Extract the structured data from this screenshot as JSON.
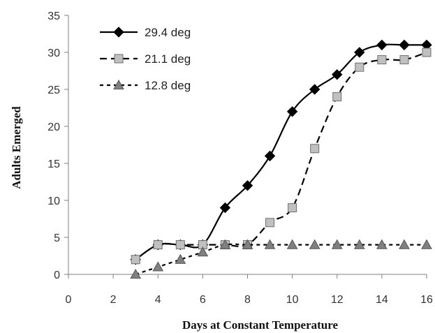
{
  "chart_data": {
    "type": "line",
    "title": "",
    "xlabel": "Days at Constant Temperature",
    "ylabel": "Adults Emerged",
    "xlim": [
      0,
      16
    ],
    "ylim": [
      0,
      35
    ],
    "x_ticks": [
      0,
      2,
      4,
      6,
      8,
      10,
      12,
      14,
      16
    ],
    "y_ticks": [
      0,
      5,
      10,
      15,
      20,
      25,
      30,
      35
    ],
    "grid": false,
    "legend_position": "top-left",
    "series": [
      {
        "name": "29.4 deg",
        "marker": "diamond",
        "line_style": "solid",
        "color": "#000000",
        "marker_fill": "#000000",
        "x": [
          3,
          4,
          5,
          6,
          7,
          8,
          9,
          10,
          11,
          12,
          13,
          14,
          15,
          16
        ],
        "y": [
          2,
          4,
          4,
          4,
          9,
          12,
          16,
          22,
          25,
          27,
          30,
          31,
          31,
          31
        ]
      },
      {
        "name": "21.1 deg",
        "marker": "square",
        "line_style": "dashed",
        "color": "#000000",
        "marker_fill": "#c0c0c0",
        "x": [
          3,
          4,
          5,
          6,
          7,
          8,
          9,
          10,
          11,
          12,
          13,
          14,
          15,
          16
        ],
        "y": [
          2,
          4,
          4,
          4,
          4,
          4,
          7,
          9,
          17,
          24,
          28,
          29,
          29,
          30
        ]
      },
      {
        "name": "12.8 deg",
        "marker": "triangle",
        "line_style": "dotted",
        "color": "#000000",
        "marker_fill": "#808080",
        "x": [
          3,
          4,
          5,
          6,
          7,
          8,
          9,
          10,
          11,
          12,
          13,
          14,
          15,
          16
        ],
        "y": [
          0,
          1,
          2,
          3,
          4,
          4,
          4,
          4,
          4,
          4,
          4,
          4,
          4,
          4
        ]
      }
    ]
  }
}
